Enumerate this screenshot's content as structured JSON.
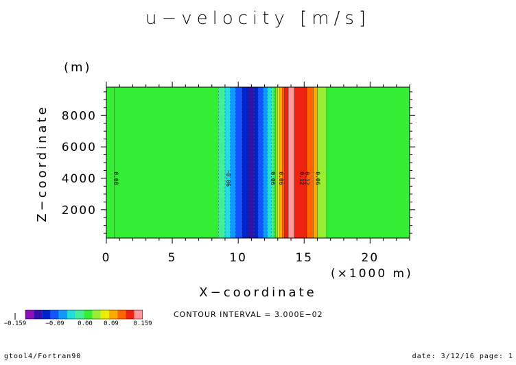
{
  "title": "u−velocity [m/s]",
  "footer": {
    "left": "gtool4/Fortran90",
    "right": "date: 3/12/16 page: 1"
  },
  "contour_interval_text": "CONTOUR INTERVAL = 3.000E−02",
  "chart_data": {
    "type": "heatmap",
    "title": "u−velocity [m/s]",
    "xlabel": "X−coordinate",
    "x_unit": "(×1000 m)",
    "ylabel": "Z−coordinate",
    "y_unit": "(m)",
    "xlim": [
      0,
      23
    ],
    "ylim": [
      200,
      9800
    ],
    "x_ticks": [
      0,
      5,
      10,
      15,
      20
    ],
    "y_ticks": [
      2000,
      4000,
      6000,
      8000
    ],
    "bands": [
      {
        "x0": 0.0,
        "x1": 8.5,
        "color": "#33ee33"
      },
      {
        "x0": 8.5,
        "x1": 9.0,
        "color": "#44ee99"
      },
      {
        "x0": 9.0,
        "x1": 9.4,
        "color": "#22dddd"
      },
      {
        "x0": 9.4,
        "x1": 9.8,
        "color": "#1199ff"
      },
      {
        "x0": 9.8,
        "x1": 10.3,
        "color": "#1155ff"
      },
      {
        "x0": 10.3,
        "x1": 10.8,
        "color": "#0022cc"
      },
      {
        "x0": 10.8,
        "x1": 11.2,
        "color": "#3311aa"
      },
      {
        "x0": 11.2,
        "x1": 11.5,
        "color": "#0022cc"
      },
      {
        "x0": 11.5,
        "x1": 11.9,
        "color": "#1155ff"
      },
      {
        "x0": 11.9,
        "x1": 12.2,
        "color": "#1199ff"
      },
      {
        "x0": 12.2,
        "x1": 12.5,
        "color": "#22dddd"
      },
      {
        "x0": 12.5,
        "x1": 12.7,
        "color": "#44ee99"
      },
      {
        "x0": 12.7,
        "x1": 12.85,
        "color": "#33ee33"
      },
      {
        "x0": 12.85,
        "x1": 13.0,
        "color": "#99ee33"
      },
      {
        "x0": 13.0,
        "x1": 13.15,
        "color": "#eeee00"
      },
      {
        "x0": 13.15,
        "x1": 13.35,
        "color": "#ffaa00"
      },
      {
        "x0": 13.35,
        "x1": 13.5,
        "color": "#ff6600"
      },
      {
        "x0": 13.5,
        "x1": 13.8,
        "color": "#ee2211"
      },
      {
        "x0": 13.8,
        "x1": 14.25,
        "color": "#ff9999"
      },
      {
        "x0": 14.25,
        "x1": 15.2,
        "color": "#ee2211"
      },
      {
        "x0": 15.2,
        "x1": 15.7,
        "color": "#ff6600"
      },
      {
        "x0": 15.7,
        "x1": 16.0,
        "color": "#ffaa00"
      },
      {
        "x0": 16.0,
        "x1": 16.7,
        "color": "#99ee33"
      },
      {
        "x0": 16.7,
        "x1": 23.0,
        "color": "#33ee33"
      }
    ],
    "contour_labels": [
      {
        "x": 0.6,
        "y": 4000,
        "text": "0.00"
      },
      {
        "x": 9.1,
        "y": 4000,
        "text": "−0.06"
      },
      {
        "x": 12.5,
        "y": 4000,
        "text": "0.06"
      },
      {
        "x": 13.1,
        "y": 4000,
        "text": "0.06"
      },
      {
        "x": 14.7,
        "y": 4000,
        "text": "0.12"
      },
      {
        "x": 15.1,
        "y": 4000,
        "text": "0.12"
      },
      {
        "x": 15.9,
        "y": 4000,
        "text": "0.06"
      }
    ],
    "colorbar": {
      "colors": [
        "#8811bb",
        "#3311aa",
        "#0022cc",
        "#1155ff",
        "#1199ff",
        "#22dddd",
        "#44ee99",
        "#33ee33",
        "#99ee33",
        "#eeee00",
        "#ffaa00",
        "#ff6600",
        "#ee2211",
        "#ff9999"
      ],
      "tick_labels": [
        "−0.159",
        "−0.09",
        "0.00",
        "0.09",
        "0.159"
      ]
    }
  }
}
